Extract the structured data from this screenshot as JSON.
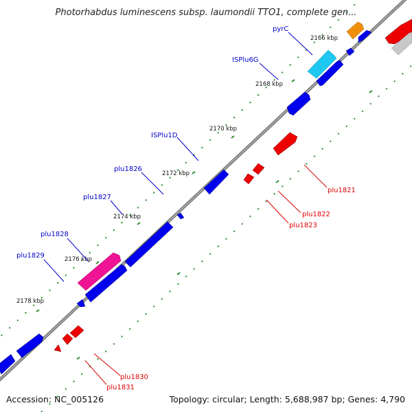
{
  "title": "Photorhabdus luminescens subsp. laumondii TTO1, complete gen...",
  "footer": {
    "accession": "Accession: NC_005126",
    "topology": "Topology: circular; Length: 5,688,987 bp; Genes: 4,790"
  },
  "ticks": [
    "2166 kbp",
    "2168 kbp",
    "2170 kbp",
    "2172 kbp",
    "2174 kbp",
    "2176 kbp",
    "2178 kbp"
  ],
  "gene_labels": {
    "pyrC": "pyrC",
    "ISPlu6G": "ISPlu6G",
    "ISPlu1D": "ISPlu1D",
    "plu1826": "plu1826",
    "plu1827": "plu1827",
    "plu1828": "plu1828",
    "plu1829": "plu1829",
    "plu1821": "plu1821",
    "plu1822": "plu1822",
    "plu1823": "plu1823",
    "plu1830": "plu1830",
    "plu1831": "plu1831"
  },
  "colors": {
    "forward": "#0000ee",
    "reverse": "#ee0000",
    "highlight_magenta": "#ee1493",
    "highlight_cyan": "#1ec8f0",
    "highlight_orange": "#f0900a",
    "gray": "#c8c8c8",
    "backbone": "#888888",
    "tick": "#2a8a2a",
    "forward_label": "#0000cc",
    "reverse_label": "#dd0000"
  }
}
